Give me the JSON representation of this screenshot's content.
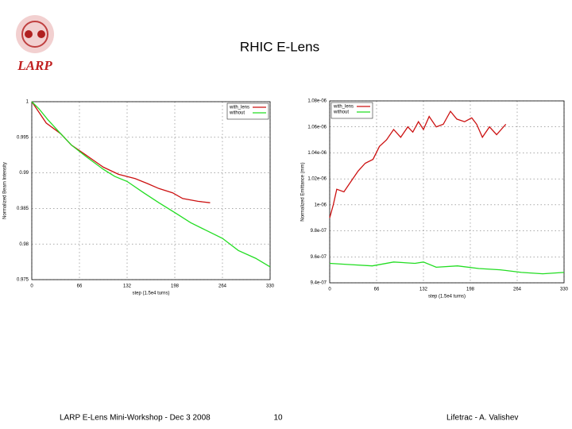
{
  "title": "RHIC E-Lens",
  "logo": "LARP",
  "footer": {
    "left": "LARP E-Lens Mini-Workshop  -  Dec 3 2008",
    "center": "10",
    "right": "Lifetrac -  A. Valishev"
  },
  "chart_data": [
    {
      "type": "line",
      "xlabel": "step (1.5e4 turns)",
      "ylabel": "Normalized Beam Intensity",
      "xlim": [
        0,
        330
      ],
      "xticks": [
        0,
        66,
        132,
        198,
        264,
        330
      ],
      "ylim": [
        0.975,
        1
      ],
      "yticks": [
        0.975,
        0.98,
        0.985,
        0.99,
        0.995,
        1
      ],
      "grid": true,
      "legend": "upper right",
      "series": [
        {
          "name": "with_lens",
          "color": "#cc1111",
          "x": [
            0,
            10,
            20,
            40,
            55,
            75,
            99,
            120,
            143,
            160,
            176,
            195,
            209,
            230,
            247
          ],
          "values": [
            1,
            0.9985,
            0.997,
            0.9955,
            0.9939,
            0.9925,
            0.9908,
            0.9898,
            0.9892,
            0.9885,
            0.9878,
            0.9872,
            0.9864,
            0.986,
            0.9858
          ]
        },
        {
          "name": "without",
          "color": "#22dd22",
          "x": [
            0,
            10,
            22,
            40,
            55,
            75,
            99,
            115,
            132,
            155,
            176,
            200,
            220,
            240,
            264,
            286,
            310,
            330
          ],
          "values": [
            1,
            0.999,
            0.9975,
            0.9955,
            0.9939,
            0.9923,
            0.9905,
            0.9895,
            0.9888,
            0.9872,
            0.9858,
            0.9843,
            0.983,
            0.982,
            0.9808,
            0.9791,
            0.978,
            0.9768
          ]
        }
      ]
    },
    {
      "type": "line",
      "xlabel": "step (1.5e4 turns)",
      "ylabel": "Normalized Emittance (mm)",
      "xlim": [
        0,
        330
      ],
      "xticks": [
        0,
        66,
        132,
        198,
        264,
        330
      ],
      "ylim": [
        9.4e-07,
        1.08e-06
      ],
      "yticks": [
        {
          "value": 9.4e-07,
          "label": "9.4e-07"
        },
        {
          "value": 9.6e-07,
          "label": "9.6e-07"
        },
        {
          "value": 9.8e-07,
          "label": "9.8e-07"
        },
        {
          "value": 1e-06,
          "label": "1e-06"
        },
        {
          "value": 1.02e-06,
          "label": "1.02e-06"
        },
        {
          "value": 1.04e-06,
          "label": "1.04e-06"
        },
        {
          "value": 1.06e-06,
          "label": "1.06e-06"
        },
        {
          "value": 1.08e-06,
          "label": "1.08e-06"
        }
      ],
      "grid": true,
      "legend": "upper left",
      "series": [
        {
          "name": "with_lens",
          "color": "#cc1111",
          "x": [
            0,
            5,
            10,
            20,
            30,
            40,
            50,
            61,
            70,
            80,
            90,
            100,
            110,
            117,
            125,
            132,
            140,
            150,
            160,
            170,
            179,
            190,
            200,
            207,
            215,
            225,
            235,
            248
          ],
          "values": [
            9.9e-07,
            1e-06,
            1.012e-06,
            1.01e-06,
            1.018e-06,
            1.026e-06,
            1.032e-06,
            1.035e-06,
            1.045e-06,
            1.05e-06,
            1.058e-06,
            1.052e-06,
            1.06e-06,
            1.056e-06,
            1.064e-06,
            1.058e-06,
            1.068e-06,
            1.06e-06,
            1.062e-06,
            1.072e-06,
            1.066e-06,
            1.064e-06,
            1.067e-06,
            1.062e-06,
            1.052e-06,
            1.06e-06,
            1.054e-06,
            1.062e-06
          ]
        },
        {
          "name": "without",
          "color": "#22dd22",
          "x": [
            0,
            30,
            60,
            90,
            120,
            132,
            150,
            180,
            210,
            240,
            270,
            300,
            330
          ],
          "values": [
            9.55e-07,
            9.54e-07,
            9.53e-07,
            9.56e-07,
            9.55e-07,
            9.56e-07,
            9.52e-07,
            9.53e-07,
            9.51e-07,
            9.5e-07,
            9.48e-07,
            9.47e-07,
            9.48e-07
          ]
        }
      ]
    }
  ]
}
